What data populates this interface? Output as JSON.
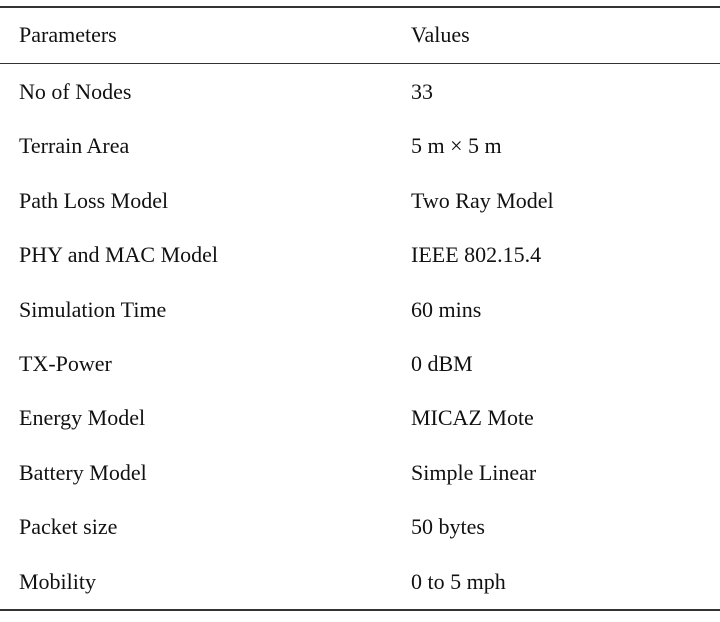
{
  "table": {
    "header": [
      "Parameters",
      "Values"
    ],
    "rows": [
      [
        "No of Nodes",
        "33"
      ],
      [
        "Terrain Area",
        "5 m × 5 m"
      ],
      [
        "Path Loss Model",
        "Two Ray Model"
      ],
      [
        "PHY and MAC Model",
        "IEEE 802.15.4"
      ],
      [
        "Simulation Time",
        "60 mins"
      ],
      [
        "TX-Power",
        "0 dBM"
      ],
      [
        "Energy Model",
        "MICAZ Mote"
      ],
      [
        "Battery Model",
        "Simple Linear"
      ],
      [
        "Packet size",
        "50 bytes"
      ],
      [
        "Mobility",
        "0 to 5 mph"
      ]
    ]
  }
}
